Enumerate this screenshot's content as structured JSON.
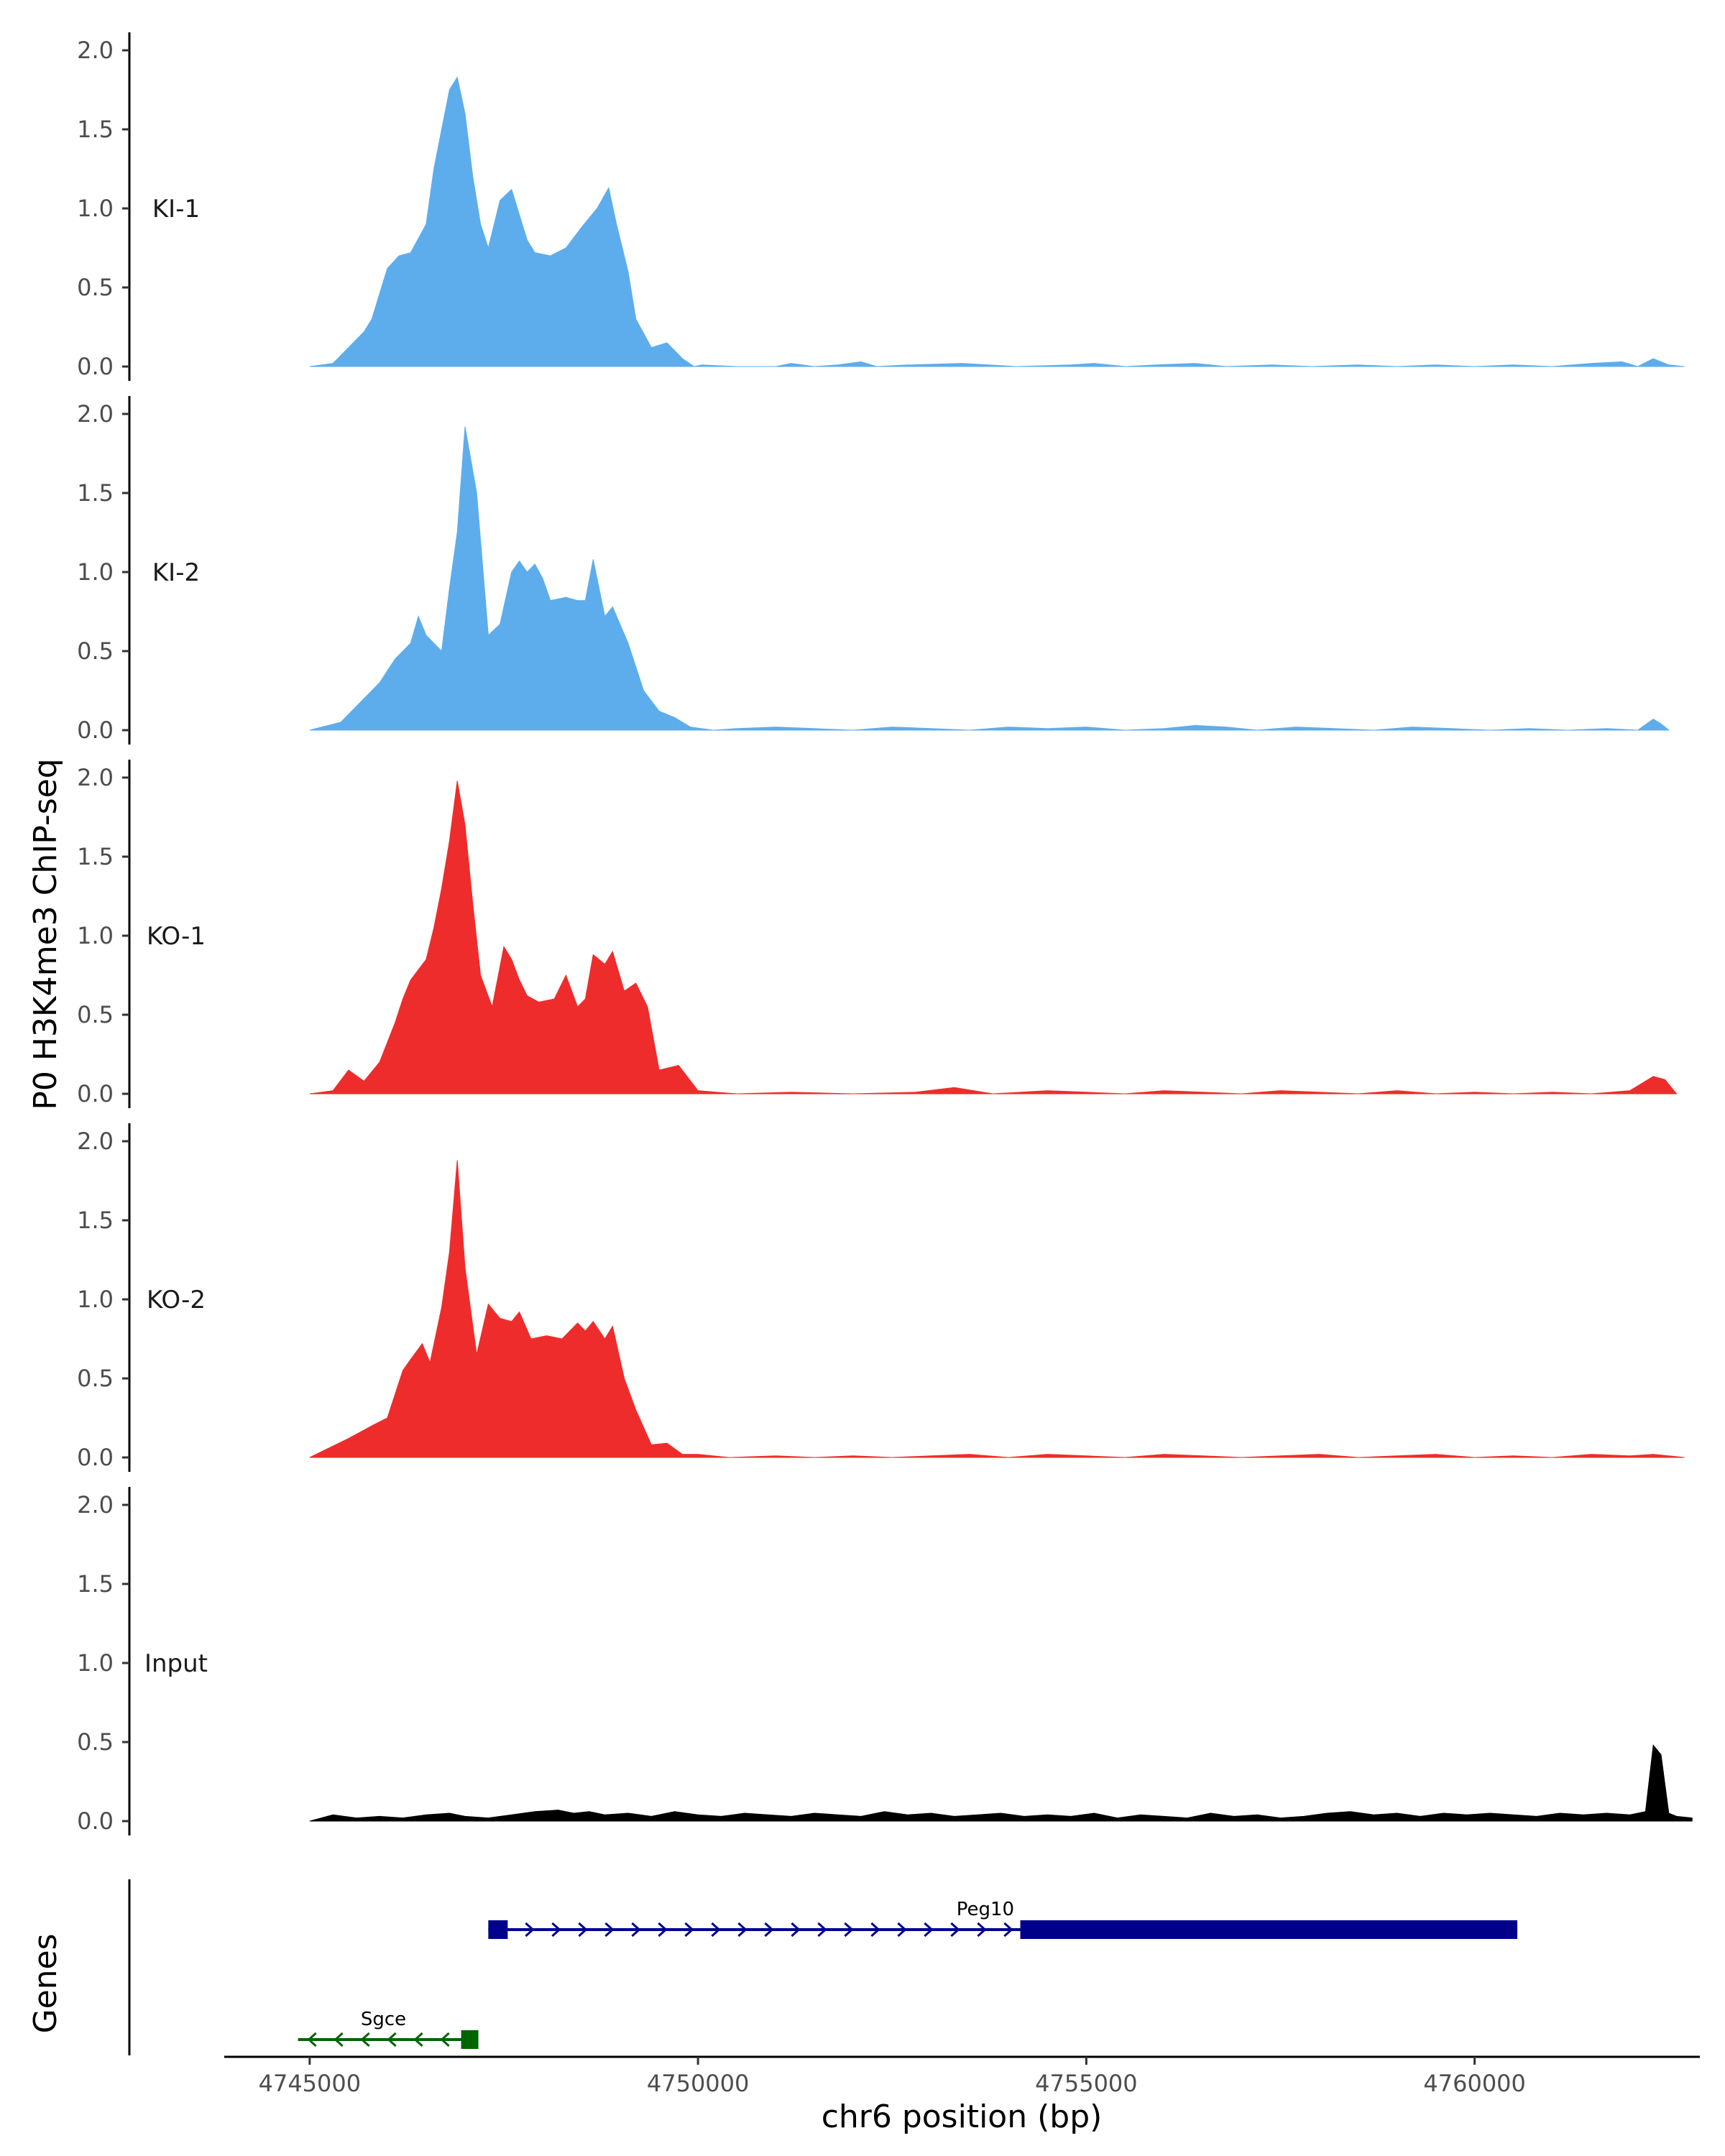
{
  "chart_data": {
    "type": "area",
    "y_title": "P0 H3K4me3 ChIP-seq",
    "x_title": "chr6 position (bp)",
    "genes_title": "Genes",
    "xlim": [
      4743900,
      4762900
    ],
    "ylim": [
      0,
      2.1
    ],
    "x_ticks": [
      4745000,
      4750000,
      4755000,
      4760000
    ],
    "x_tick_labels": [
      "4745000",
      "4750000",
      "4755000",
      "4760000"
    ],
    "y_ticks": [
      0,
      0.5,
      1.0,
      1.5,
      2.0
    ],
    "y_tick_labels": [
      "0.0",
      "0.5",
      "1.0",
      "1.5",
      "2.0"
    ],
    "colors": {
      "KI": "#5DADEC",
      "KO": "#EE2C2C",
      "Input": "#000000",
      "Peg10": "#00008B",
      "Sgce": "#006400"
    },
    "tracks": [
      {
        "name": "KI-1",
        "color": "#5DADEC",
        "x": [
          4745000,
          4745300,
          4745500,
          4745700,
          4745800,
          4746000,
          4746150,
          4746300,
          4746500,
          4746600,
          4746700,
          4746800,
          4746900,
          4747000,
          4747100,
          4747200,
          4747300,
          4747450,
          4747600,
          4747800,
          4747900,
          4748100,
          4748300,
          4748500,
          4748700,
          4748850,
          4748950,
          4749100,
          4749200,
          4749400,
          4749600,
          4749800,
          4749950,
          4750050,
          4750500,
          4751000,
          4751200,
          4751500,
          4751800,
          4752100,
          4752300,
          4752700,
          4753400,
          4754100,
          4754800,
          4755100,
          4755500,
          4755900,
          4756400,
          4756800,
          4757400,
          4757900,
          4758500,
          4759000,
          4759500,
          4760000,
          4760500,
          4761000,
          4761500,
          4761900,
          4762100,
          4762300,
          4762500,
          4762700
        ],
        "y": [
          0,
          0.02,
          0.12,
          0.22,
          0.3,
          0.62,
          0.7,
          0.72,
          0.9,
          1.25,
          1.5,
          1.75,
          1.83,
          1.6,
          1.2,
          0.9,
          0.75,
          1.05,
          1.12,
          0.8,
          0.72,
          0.7,
          0.75,
          0.88,
          1.0,
          1.13,
          0.9,
          0.6,
          0.3,
          0.12,
          0.15,
          0.05,
          0,
          0.01,
          0,
          0,
          0.02,
          0,
          0.01,
          0.03,
          0,
          0.01,
          0.02,
          0,
          0.01,
          0.02,
          0,
          0.01,
          0.02,
          0,
          0.01,
          0,
          0.01,
          0,
          0.01,
          0,
          0.01,
          0,
          0.02,
          0.03,
          0,
          0.05,
          0.01,
          0
        ],
        "x_label": ""
      },
      {
        "name": "KI-2",
        "color": "#5DADEC",
        "x": [
          4745000,
          4745400,
          4745700,
          4745900,
          4746100,
          4746300,
          4746400,
          4746500,
          4746700,
          4746800,
          4746900,
          4747000,
          4747150,
          4747300,
          4747450,
          4747600,
          4747700,
          4747800,
          4747900,
          4748000,
          4748100,
          4748300,
          4748450,
          4748550,
          4748650,
          4748800,
          4748900,
          4749100,
          4749300,
          4749500,
          4749700,
          4749900,
          4750200,
          4750500,
          4751000,
          4751500,
          4752000,
          4752500,
          4753000,
          4753500,
          4754000,
          4754500,
          4755000,
          4755500,
          4756000,
          4756400,
          4756800,
          4757200,
          4757700,
          4758200,
          4758700,
          4759200,
          4759700,
          4760200,
          4760700,
          4761200,
          4761700,
          4762100,
          4762300,
          4762400,
          4762500
        ],
        "y": [
          0,
          0.05,
          0.2,
          0.3,
          0.45,
          0.55,
          0.72,
          0.6,
          0.5,
          0.9,
          1.25,
          1.92,
          1.5,
          0.6,
          0.67,
          1.0,
          1.07,
          1.0,
          1.05,
          0.96,
          0.82,
          0.84,
          0.82,
          0.82,
          1.08,
          0.72,
          0.78,
          0.55,
          0.25,
          0.12,
          0.08,
          0.02,
          0,
          0.01,
          0.02,
          0.01,
          0,
          0.02,
          0.01,
          0,
          0.02,
          0.01,
          0.02,
          0,
          0.01,
          0.03,
          0.02,
          0,
          0.02,
          0.01,
          0,
          0.02,
          0.01,
          0,
          0.01,
          0,
          0.01,
          0,
          0.07,
          0.04,
          0
        ],
        "x_label": ""
      },
      {
        "name": "KO-1",
        "color": "#EE2C2C",
        "x": [
          4745000,
          4745300,
          4745500,
          4745700,
          4745900,
          4746100,
          4746200,
          4746300,
          4746500,
          4746600,
          4746700,
          4746800,
          4746900,
          4747000,
          4747100,
          4747200,
          4747350,
          4747500,
          4747600,
          4747700,
          4747800,
          4747950,
          4748150,
          4748300,
          4748450,
          4748550,
          4748650,
          4748800,
          4748900,
          4749050,
          4749200,
          4749350,
          4749500,
          4749750,
          4750000,
          4750500,
          4751200,
          4752000,
          4752800,
          4753300,
          4753800,
          4754500,
          4755000,
          4755500,
          4756000,
          4756500,
          4757000,
          4757500,
          4758000,
          4758500,
          4759000,
          4759500,
          4760000,
          4760500,
          4761000,
          4761500,
          4762000,
          4762300,
          4762450,
          4762600
        ],
        "y": [
          0,
          0.02,
          0.15,
          0.08,
          0.2,
          0.45,
          0.6,
          0.72,
          0.85,
          1.05,
          1.3,
          1.6,
          1.98,
          1.7,
          1.2,
          0.75,
          0.55,
          0.93,
          0.85,
          0.72,
          0.62,
          0.58,
          0.6,
          0.75,
          0.55,
          0.6,
          0.88,
          0.82,
          0.9,
          0.65,
          0.7,
          0.55,
          0.15,
          0.18,
          0.02,
          0,
          0.01,
          0,
          0.01,
          0.04,
          0,
          0.02,
          0.01,
          0,
          0.02,
          0.01,
          0,
          0.02,
          0.01,
          0,
          0.02,
          0,
          0.01,
          0,
          0.01,
          0,
          0.02,
          0.11,
          0.09,
          0
        ],
        "x_label": ""
      },
      {
        "name": "KO-2",
        "color": "#EE2C2C",
        "x": [
          4745000,
          4745500,
          4745800,
          4746000,
          4746200,
          4746300,
          4746450,
          4746550,
          4746700,
          4746800,
          4746900,
          4747000,
          4747150,
          4747300,
          4747450,
          4747600,
          4747700,
          4747850,
          4748050,
          4748250,
          4748450,
          4748550,
          4748650,
          4748800,
          4748900,
          4749050,
          4749200,
          4749400,
          4749600,
          4749800,
          4750000,
          4750400,
          4751000,
          4751500,
          4752000,
          4752500,
          4753000,
          4753500,
          4754000,
          4754500,
          4755000,
          4755500,
          4756000,
          4756500,
          4757000,
          4757500,
          4758000,
          4758500,
          4759000,
          4759500,
          4760000,
          4760500,
          4761000,
          4761500,
          4762000,
          4762300,
          4762500,
          4762700
        ],
        "y": [
          0,
          0.12,
          0.2,
          0.25,
          0.55,
          0.62,
          0.72,
          0.6,
          0.95,
          1.3,
          1.88,
          1.2,
          0.65,
          0.97,
          0.88,
          0.86,
          0.92,
          0.75,
          0.77,
          0.75,
          0.85,
          0.8,
          0.86,
          0.75,
          0.83,
          0.5,
          0.3,
          0.08,
          0.09,
          0.02,
          0.02,
          0,
          0.01,
          0,
          0.01,
          0,
          0.01,
          0.02,
          0,
          0.02,
          0.01,
          0,
          0.02,
          0.01,
          0,
          0.01,
          0.02,
          0,
          0.01,
          0.02,
          0,
          0.01,
          0,
          0.02,
          0.01,
          0.02,
          0.01,
          0
        ],
        "x_label": ""
      },
      {
        "name": "Input",
        "color": "#000000",
        "x": [
          4745000,
          4745300,
          4745600,
          4745900,
          4746200,
          4746500,
          4746800,
          4747000,
          4747300,
          4747600,
          4747900,
          4748200,
          4748400,
          4748600,
          4748800,
          4749100,
          4749400,
          4749700,
          4750000,
          4750300,
          4750600,
          4750900,
          4751200,
          4751500,
          4751800,
          4752100,
          4752400,
          4752700,
          4753000,
          4753300,
          4753600,
          4753900,
          4754200,
          4754500,
          4754800,
          4755100,
          4755400,
          4755700,
          4756000,
          4756300,
          4756600,
          4756900,
          4757200,
          4757500,
          4757800,
          4758100,
          4758400,
          4758700,
          4759000,
          4759300,
          4759600,
          4759900,
          4760200,
          4760500,
          4760800,
          4761100,
          4761400,
          4761700,
          4762000,
          4762200,
          4762300,
          4762400,
          4762500,
          4762600,
          4762800
        ],
        "y": [
          0,
          0.04,
          0.02,
          0.03,
          0.02,
          0.04,
          0.05,
          0.03,
          0.02,
          0.04,
          0.06,
          0.07,
          0.05,
          0.06,
          0.04,
          0.05,
          0.03,
          0.06,
          0.04,
          0.03,
          0.05,
          0.04,
          0.03,
          0.05,
          0.04,
          0.03,
          0.06,
          0.04,
          0.05,
          0.03,
          0.04,
          0.05,
          0.03,
          0.04,
          0.03,
          0.05,
          0.02,
          0.04,
          0.03,
          0.02,
          0.05,
          0.03,
          0.04,
          0.02,
          0.03,
          0.05,
          0.06,
          0.04,
          0.05,
          0.03,
          0.05,
          0.04,
          0.05,
          0.04,
          0.03,
          0.05,
          0.04,
          0.05,
          0.04,
          0.06,
          0.48,
          0.42,
          0.05,
          0.03,
          0.02
        ],
        "x_label": ""
      }
    ],
    "genes": [
      {
        "name": "Peg10",
        "strand": "+",
        "start": 4747300,
        "end": 4760550,
        "exons": [
          [
            4747300,
            4747550
          ],
          [
            4754150,
            4760550
          ]
        ],
        "color": "#00008B"
      },
      {
        "name": "Sgce",
        "strand": "-",
        "start": 4744850,
        "end": 4747150,
        "exons": [
          [
            4746950,
            4747150
          ]
        ],
        "color": "#006400"
      }
    ]
  }
}
